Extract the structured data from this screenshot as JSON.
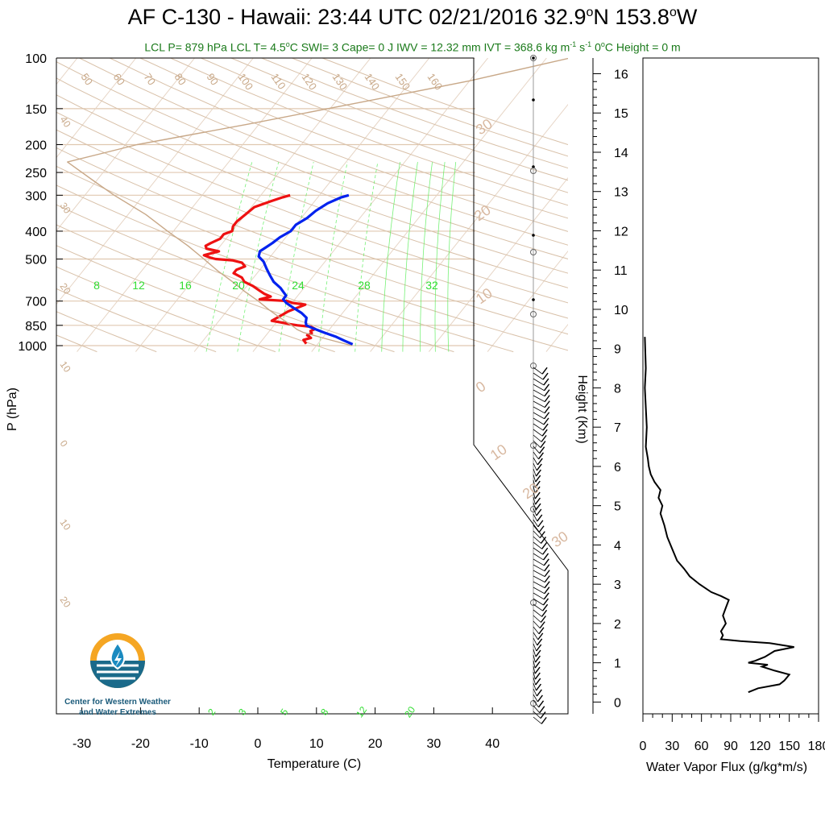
{
  "title_parts": [
    "AF C-130 - Hawaii: 23:44 UTC 02/21/2016  32.9",
    "o",
    "N 153.8",
    "o",
    "W"
  ],
  "subtitle_parts": [
    "LCL P= 879 hPa  LCL T= 4.5",
    "o",
    "C  SWI= 3  Cape= 0 J  IWV = 12.32 mm  IVT = 368.6 kg m",
    "-1",
    " s",
    "-1",
    "  0",
    "o",
    "C Height = 0 m"
  ],
  "chart_data": [
    {
      "type": "line",
      "subtype": "skew-t log-p sounding",
      "xlabel": "Temperature (C)",
      "ylabel": "P (hPa)",
      "xlim": [
        -34,
        50
      ],
      "ylim": [
        1050,
        100
      ],
      "y_scale": "log",
      "x_ticks": [
        -30,
        -20,
        -10,
        0,
        10,
        20,
        30,
        40
      ],
      "y_ticks": [
        100,
        150,
        200,
        250,
        300,
        400,
        500,
        700,
        850,
        1000
      ],
      "colors": {
        "temperature": "#ee1111",
        "dewpoint_like": "#0022ee",
        "parcel": "#c8a888",
        "dry_adiabat": "#d8c0a8",
        "mixing_ratio": "#55ee55"
      },
      "series": [
        {
          "role": "red-profile",
          "p": [
            985,
            970,
            955,
            940,
            920,
            905,
            890,
            875,
            860,
            850,
            842,
            835,
            820,
            800,
            780,
            760,
            740,
            720,
            710,
            700,
            690,
            675,
            660,
            640,
            620,
            600,
            580,
            560,
            545,
            530,
            515,
            505,
            500,
            495,
            485,
            470,
            460,
            450,
            440,
            425,
            410,
            400,
            385,
            370,
            350,
            330,
            315,
            305,
            300
          ],
          "T": [
            8,
            7.5,
            7,
            8,
            7,
            7.5,
            7,
            7.5,
            6.5,
            4,
            2.5,
            1.5,
            -1,
            -0.5,
            0,
            0.5,
            1.5,
            2.5,
            0,
            -1,
            -6,
            -4.5,
            -6,
            -7.5,
            -9,
            -11,
            -12,
            -14,
            -14,
            -13,
            -14,
            -16,
            -19,
            -20,
            -21.5,
            -19.5,
            -22,
            -22.5,
            -22,
            -21,
            -21,
            -20,
            -20.5,
            -20.5,
            -20,
            -19.5,
            -17.5,
            -16,
            -15
          ]
        },
        {
          "role": "blue-profile",
          "p": [
            990,
            960,
            930,
            900,
            870,
            850,
            830,
            800,
            770,
            740,
            710,
            690,
            670,
            650,
            630,
            600,
            570,
            540,
            510,
            490,
            470,
            455,
            440,
            420,
            400,
            380,
            360,
            340,
            320,
            305,
            300
          ],
          "T": [
            16,
            14,
            12,
            9.5,
            7,
            5.5,
            5,
            4.5,
            3,
            1,
            -1,
            -2,
            -2,
            -3,
            -4,
            -6,
            -7.5,
            -9,
            -10.5,
            -12,
            -12.5,
            -12,
            -11.5,
            -11,
            -10,
            -10,
            -9,
            -8.5,
            -7.5,
            -6,
            -5
          ]
        },
        {
          "role": "parcel",
          "p": [
            1000,
            950,
            900,
            879,
            850,
            800,
            750,
            700,
            650,
            600,
            550,
            500,
            450,
            400,
            350,
            300,
            270,
            230,
            200,
            170,
            140,
            120,
            100
          ],
          "T": [
            16,
            11,
            6,
            4.5,
            3,
            0,
            -3,
            -6,
            -9.5,
            -13,
            -17,
            -21,
            -25.5,
            -31,
            -37,
            -45,
            -50,
            -57.5,
            -48,
            -32,
            -14,
            0,
            14
          ]
        }
      ],
      "dry_adiabat_labels": [
        "-20",
        "-10",
        "0",
        "10",
        "20",
        "30",
        "40",
        "50",
        "60",
        "70",
        "80",
        "90",
        "100",
        "110",
        "120",
        "130",
        "140",
        "150",
        "160"
      ],
      "dry_adiabat_side_labels": [
        "40",
        "30",
        "20",
        "10",
        "0",
        "10",
        "20"
      ],
      "dry_adiabat_right_labels": [
        "30",
        "20",
        "10",
        "0",
        "10",
        "20",
        "30"
      ],
      "mixing_ratio_top_labels": [
        "8",
        "12",
        "16",
        "20",
        "24",
        "28",
        "32"
      ],
      "mixing_ratio_bottom_labels": [
        "2",
        "3",
        "5",
        "8",
        "12",
        "20"
      ]
    },
    {
      "type": "line",
      "subtype": "profile",
      "xlabel": "Water Vapor Flux (g/kg*m/s)",
      "ylabel": "Height (Km)",
      "xlim": [
        0,
        180
      ],
      "ylim": [
        -0.3,
        16.4
      ],
      "x_ticks": [
        0,
        30,
        60,
        90,
        120,
        150,
        180
      ],
      "y_ticks": [
        0,
        1,
        2,
        3,
        4,
        5,
        6,
        7,
        8,
        9,
        10,
        11,
        12,
        13,
        14,
        15,
        16
      ],
      "series": [
        {
          "role": "wv-flux",
          "x": [
            2,
            3,
            2,
            3,
            4,
            3,
            5,
            6,
            8,
            12,
            18,
            16,
            20,
            18,
            22,
            25,
            30,
            35,
            42,
            45,
            48,
            58,
            70,
            80,
            88,
            85,
            82,
            85,
            80,
            82,
            80,
            100,
            130,
            155,
            135,
            125,
            115,
            108,
            128,
            122,
            135,
            150,
            145,
            140,
            118,
            108
          ],
          "h": [
            9.3,
            8.5,
            8,
            7.5,
            7,
            6.5,
            6.2,
            6.0,
            5.8,
            5.6,
            5.4,
            5.2,
            5.0,
            4.8,
            4.5,
            4.2,
            3.9,
            3.6,
            3.4,
            3.3,
            3.2,
            3.0,
            2.8,
            2.7,
            2.6,
            2.4,
            2.2,
            2.0,
            1.8,
            1.7,
            1.6,
            1.55,
            1.5,
            1.4,
            1.3,
            1.15,
            1.05,
            1.0,
            0.95,
            0.9,
            0.8,
            0.7,
            0.55,
            0.45,
            0.35,
            0.25
          ]
        }
      ]
    }
  ],
  "logo": {
    "line1": "Center for Western Weather",
    "line2": "and Water Extremes",
    "icon": "water-drop-lightning-logo"
  }
}
